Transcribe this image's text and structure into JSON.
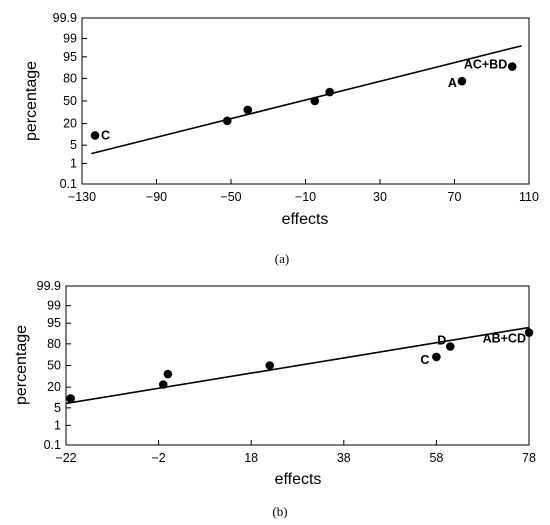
{
  "chart_data": [
    {
      "type": "scatter",
      "caption": "(a)",
      "xlabel": "effects",
      "ylabel": "percentage",
      "xlim": [
        -130,
        110
      ],
      "x_ticks": [
        -130,
        -90,
        -50,
        -10,
        30,
        70,
        110
      ],
      "x_tick_labels": [
        "−130",
        "−90",
        "−50",
        "−10",
        "30",
        "70",
        "110"
      ],
      "y_ticks": [
        "99.9",
        "99",
        "95",
        "80",
        "50",
        "20",
        "5",
        "1",
        "0.1"
      ],
      "y_scale": "normal-probability",
      "grid": false,
      "points": [
        {
          "x": -123,
          "y": 10,
          "label": "C"
        },
        {
          "x": -52,
          "y": 23
        },
        {
          "x": -41,
          "y": 37
        },
        {
          "x": -5,
          "y": 50
        },
        {
          "x": 3,
          "y": 63
        },
        {
          "x": 74,
          "y": 77,
          "label": "A"
        },
        {
          "x": 101,
          "y": 90,
          "label": "AC+BD"
        }
      ],
      "fit_line": {
        "x": [
          -125,
          106
        ],
        "y": [
          2.5,
          98
        ]
      }
    },
    {
      "type": "scatter",
      "caption": "(b)",
      "xlabel": "effects",
      "ylabel": "percentage",
      "xlim": [
        -22,
        78
      ],
      "x_ticks": [
        -22,
        -2,
        18,
        38,
        58,
        78
      ],
      "x_tick_labels": [
        "−22",
        "−2",
        "18",
        "38",
        "58",
        "78"
      ],
      "y_ticks": [
        "99.9",
        "99",
        "95",
        "80",
        "50",
        "20",
        "5",
        "1",
        "0.1"
      ],
      "y_scale": "normal-probability",
      "grid": false,
      "points": [
        {
          "x": -21,
          "y": 10
        },
        {
          "x": -1,
          "y": 23
        },
        {
          "x": 0,
          "y": 37
        },
        {
          "x": 22,
          "y": 50
        },
        {
          "x": 58,
          "y": 63,
          "label": "C"
        },
        {
          "x": 61,
          "y": 77,
          "label": "D"
        },
        {
          "x": 78,
          "y": 90,
          "label": "AB+CD"
        }
      ],
      "fit_line": {
        "x": [
          -22,
          78
        ],
        "y": [
          7,
          93
        ]
      }
    }
  ]
}
